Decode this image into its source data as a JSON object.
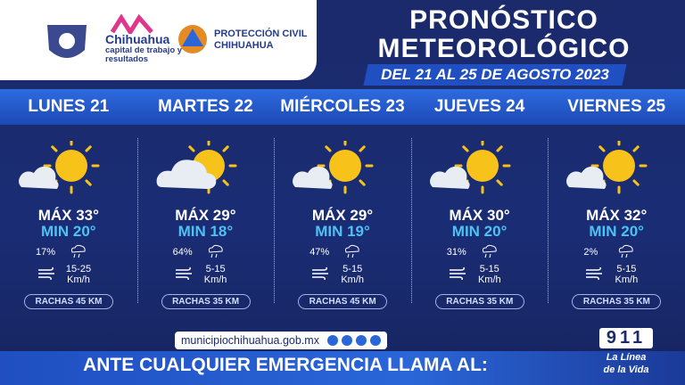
{
  "header": {
    "city": "Chihuahua",
    "slogan": "capital de trabajo y resultados",
    "agency": "PROTECCIÓN CIVIL",
    "agency_city": "CHIHUAHUA",
    "title_line1": "PRONÓSTICO",
    "title_line2": "METEOROLÓGICO",
    "date_range": "DEL 21 AL 25 DE AGOSTO 2023"
  },
  "days": [
    {
      "name": "LUNES 21",
      "max": "MÁX 33°",
      "min": "MIN 20°",
      "rain": "17%",
      "wind": "15-25",
      "wind_unit": "Km/h",
      "gusts": "RACHAS 45 KM"
    },
    {
      "name": "MARTES 22",
      "max": "MÁX 29°",
      "min": "MIN 18°",
      "rain": "64%",
      "wind": "5-15",
      "wind_unit": "Km/h",
      "gusts": "RACHAS 35 KM"
    },
    {
      "name": "MIÉRCOLES 23",
      "max": "MÁX 29°",
      "min": "MIN 19°",
      "rain": "47%",
      "wind": "5-15",
      "wind_unit": "Km/h",
      "gusts": "RACHAS 45 KM"
    },
    {
      "name": "JUEVES 24",
      "max": "MÁX 30°",
      "min": "MIN 20°",
      "rain": "31%",
      "wind": "5-15",
      "wind_unit": "Km/h",
      "gusts": "RACHAS 35 KM"
    },
    {
      "name": "VIERNES 25",
      "max": "MÁX 32°",
      "min": "MIN 20°",
      "rain": "2%",
      "wind": "5-15",
      "wind_unit": "Km/h",
      "gusts": "RACHAS 35 KM"
    }
  ],
  "footer": {
    "website": "municipiochihuahua.gob.mx",
    "call_to_action": "ANTE CUALQUIER EMERGENCIA LLAMA AL:",
    "emergency_number": "911",
    "hotline_line1": "La Línea",
    "hotline_line2": "de la Vida"
  }
}
